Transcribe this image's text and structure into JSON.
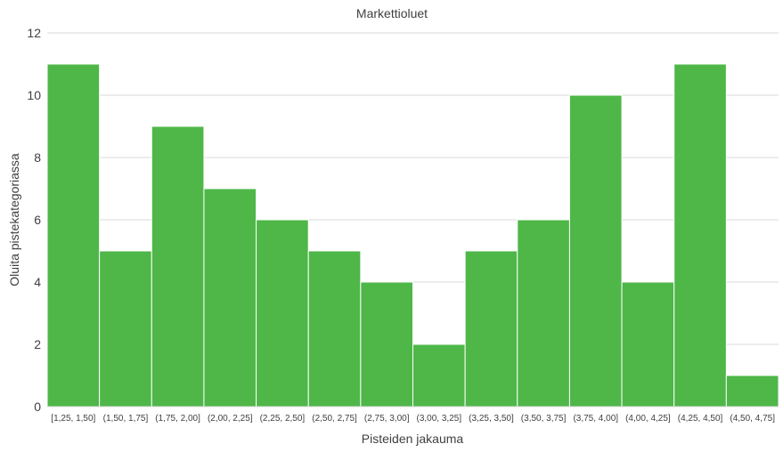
{
  "chart_data": {
    "type": "bar",
    "title": "Markettioluet",
    "xlabel": "Pisteiden jakauma",
    "ylabel": "Oluita pistekategoriassa",
    "categories": [
      "[1,25, 1,50]",
      "(1,50, 1,75]",
      "(1,75, 2,00]",
      "(2,00, 2,25]",
      "(2,25, 2,50]",
      "(2,50, 2,75]",
      "(2,75, 3,00]",
      "(3,00, 3,25]",
      "(3,25, 3,50]",
      "(3,50, 3,75]",
      "(3,75, 4,00]",
      "(4,00, 4,25]",
      "(4,25, 4,50]",
      "(4,50, 4,75]"
    ],
    "values": [
      11,
      5,
      9,
      7,
      6,
      5,
      4,
      2,
      5,
      6,
      10,
      4,
      11,
      1
    ],
    "ylim": [
      0,
      12
    ],
    "yticks": [
      0,
      2,
      4,
      6,
      8,
      10,
      12
    ],
    "grid": true,
    "bar_color": "#4eb748"
  }
}
